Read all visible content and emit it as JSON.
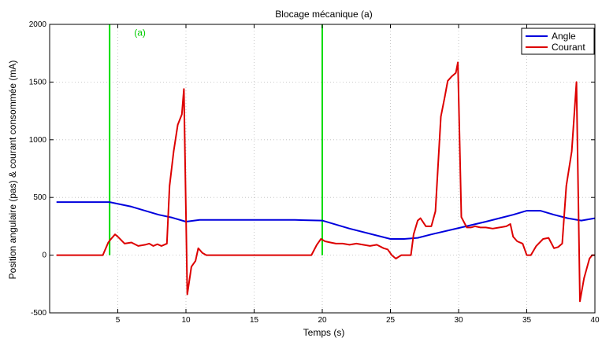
{
  "chart_data": {
    "type": "line",
    "title": "Blocage mécanique (a)",
    "xlabel": "Temps (s)",
    "ylabel": "Position angulaire (pas) & courant consommée (mA)",
    "xlim": [
      0,
      40
    ],
    "ylim": [
      -500,
      2000
    ],
    "xticks": [
      5,
      10,
      15,
      20,
      25,
      30,
      35,
      40
    ],
    "yticks": [
      -500,
      0,
      500,
      1000,
      1500,
      2000
    ],
    "grid": true,
    "legend_position": "top-right",
    "annotation": {
      "text": "(a)",
      "x": 6.2,
      "y": 1900
    },
    "vlines": [
      {
        "x": 4.4,
        "color": "#00dd00"
      },
      {
        "x": 20.0,
        "color": "#00dd00"
      }
    ],
    "series": [
      {
        "name": "Angle",
        "color": "#0000dd",
        "x": [
          0.5,
          4.4,
          6,
          8,
          9,
          10,
          11,
          12,
          15,
          18,
          20,
          22,
          25,
          26,
          27,
          28,
          30,
          32,
          34,
          35,
          36,
          37,
          38,
          39,
          40
        ],
        "y": [
          460,
          460,
          420,
          350,
          325,
          290,
          305,
          305,
          305,
          305,
          300,
          230,
          140,
          140,
          150,
          180,
          235,
          290,
          350,
          385,
          385,
          350,
          320,
          300,
          320
        ]
      },
      {
        "name": "Courant",
        "color": "#dd0000",
        "x": [
          0.5,
          3.5,
          3.9,
          4.3,
          4.5,
          4.8,
          5.0,
          5.5,
          6.0,
          6.5,
          7.0,
          7.3,
          7.6,
          7.9,
          8.2,
          8.6,
          8.8,
          9.1,
          9.4,
          9.7,
          9.85,
          10.1,
          10.4,
          10.7,
          10.9,
          11.2,
          11.5,
          12,
          15,
          18,
          19.2,
          19.6,
          19.9,
          20.2,
          20.6,
          21.0,
          21.5,
          22.0,
          22.5,
          23.0,
          23.5,
          24.0,
          24.5,
          24.8,
          25.1,
          25.4,
          25.8,
          26.5,
          26.7,
          27.0,
          27.2,
          27.6,
          28.0,
          28.3,
          28.7,
          29.0,
          29.2,
          29.5,
          29.8,
          29.95,
          30.2,
          30.6,
          30.9,
          31.2,
          31.6,
          32.0,
          32.5,
          33.0,
          33.5,
          33.8,
          34.0,
          34.3,
          34.7,
          35.0,
          35.3,
          35.7,
          36.2,
          36.6,
          37.0,
          37.3,
          37.6,
          37.9,
          38.3,
          38.65,
          38.9,
          39.2,
          39.6,
          39.8,
          40
        ],
        "y": [
          0,
          0,
          0,
          110,
          140,
          180,
          160,
          100,
          110,
          80,
          90,
          100,
          80,
          95,
          80,
          100,
          600,
          900,
          1130,
          1220,
          1440,
          -340,
          -100,
          -50,
          60,
          20,
          0,
          0,
          0,
          0,
          0,
          90,
          140,
          120,
          110,
          100,
          100,
          90,
          100,
          90,
          80,
          90,
          60,
          50,
          0,
          -30,
          0,
          0,
          180,
          300,
          320,
          250,
          250,
          380,
          1200,
          1380,
          1510,
          1550,
          1580,
          1670,
          330,
          240,
          240,
          250,
          240,
          240,
          230,
          240,
          250,
          270,
          160,
          120,
          100,
          0,
          0,
          80,
          140,
          150,
          60,
          70,
          100,
          600,
          900,
          1500,
          -400,
          -200,
          -30,
          0,
          0
        ]
      }
    ]
  }
}
